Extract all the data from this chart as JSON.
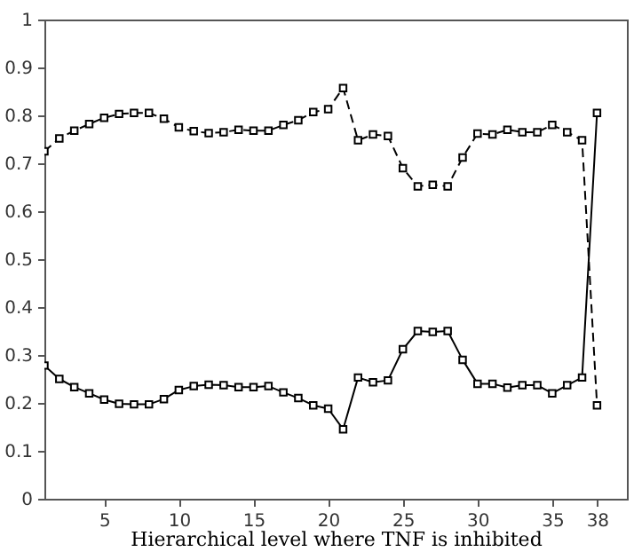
{
  "chart_data": {
    "type": "line",
    "xlabel": "Hierarchical level where TNF is inhibited",
    "x": [
      1,
      2,
      3,
      4,
      5,
      6,
      7,
      8,
      9,
      10,
      11,
      12,
      13,
      14,
      15,
      16,
      17,
      18,
      19,
      20,
      21,
      22,
      23,
      24,
      25,
      26,
      27,
      28,
      29,
      30,
      31,
      32,
      33,
      34,
      35,
      36,
      37,
      38
    ],
    "series": [
      {
        "color": "#000000",
        "line_style": "dashed",
        "values": [
          0.725,
          0.752,
          0.768,
          0.782,
          0.795,
          0.803,
          0.805,
          0.805,
          0.793,
          0.775,
          0.767,
          0.763,
          0.765,
          0.77,
          0.768,
          0.768,
          0.78,
          0.79,
          0.807,
          0.813,
          0.857,
          0.748,
          0.76,
          0.757,
          0.69,
          0.652,
          0.655,
          0.652,
          0.712,
          0.762,
          0.76,
          0.77,
          0.765,
          0.765,
          0.78,
          0.765,
          0.748,
          0.195
        ]
      },
      {
        "color": "#000000",
        "line_style": "solid",
        "values": [
          0.278,
          0.25,
          0.233,
          0.22,
          0.207,
          0.198,
          0.197,
          0.197,
          0.208,
          0.227,
          0.235,
          0.238,
          0.237,
          0.233,
          0.233,
          0.235,
          0.222,
          0.21,
          0.195,
          0.188,
          0.145,
          0.253,
          0.243,
          0.247,
          0.312,
          0.35,
          0.348,
          0.35,
          0.29,
          0.24,
          0.24,
          0.232,
          0.237,
          0.237,
          0.22,
          0.237,
          0.253,
          0.805
        ]
      }
    ],
    "xlim": [
      1,
      40
    ],
    "xticks": [
      5,
      10,
      15,
      20,
      25,
      30,
      35,
      38
    ],
    "ylim": [
      0,
      1
    ],
    "yticks": [
      0,
      0.1,
      0.2,
      0.3,
      0.4,
      0.5,
      0.6,
      0.7,
      0.8,
      0.9,
      1
    ],
    "marker": "square",
    "grid": false
  }
}
